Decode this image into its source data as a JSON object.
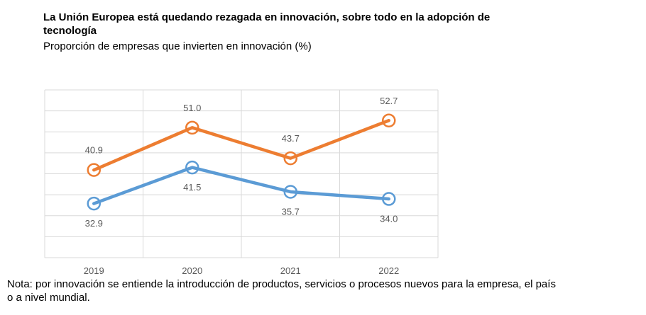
{
  "header": {
    "title_line1": "La Unión Europea está quedando rezagada en innovación, sobre todo en la adopción de",
    "title_line2": "tecnología",
    "subtitle": "Proporción de empresas que invierten en innovación (%)"
  },
  "note": {
    "line1": "Nota: por innovación se entiende la introducción de productos, servicios o procesos nuevos para la empresa, el país",
    "line2": "o a nivel mundial."
  },
  "chart_data": {
    "type": "line",
    "title": "La Unión Europea está quedando rezagada en innovación, sobre todo en la adopción de tecnología",
    "subtitle": "Proporción de empresas que invierten en innovación (%)",
    "categories": [
      "2019",
      "2020",
      "2021",
      "2022"
    ],
    "series": [
      {
        "name": "series-top-orange",
        "color": "#ED7D31",
        "values": [
          40.9,
          51.0,
          43.7,
          52.7
        ],
        "labels": [
          "40.9",
          "51.0",
          "43.7",
          "52.7"
        ],
        "label_position": "above"
      },
      {
        "name": "series-bottom-blue",
        "color": "#5B9BD5",
        "values": [
          32.9,
          41.5,
          35.7,
          34.0
        ],
        "labels": [
          "32.9",
          "41.5",
          "35.7",
          "34.0"
        ],
        "label_position": "below"
      }
    ],
    "ylim": [
      20,
      60
    ],
    "gridline_step": 5,
    "grid": true,
    "legend": "none",
    "xlabel": "",
    "ylabel": "",
    "gridline_color": "#D9D9D9",
    "axis_label_color": "#595959",
    "marker_fill": "#ffffff",
    "note": "Nota: por innovación se entiende la introducción de productos, servicios o procesos nuevos para la empresa, el país o a nivel mundial."
  }
}
